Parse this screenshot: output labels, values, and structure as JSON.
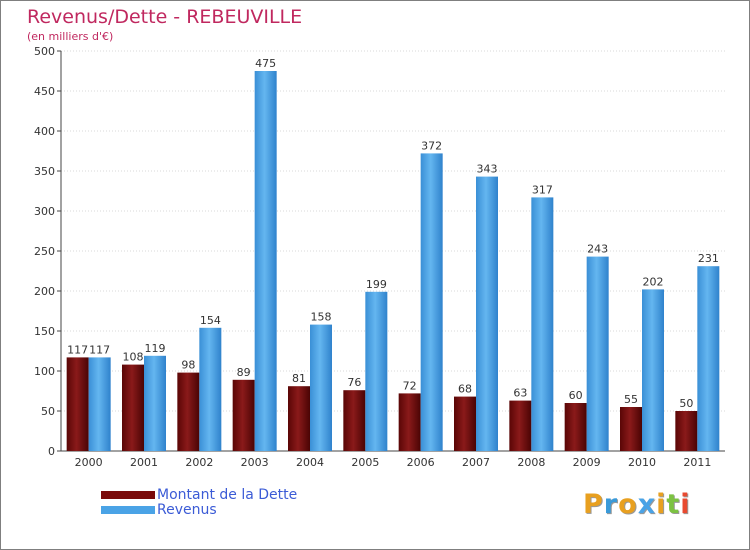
{
  "chart_data": {
    "type": "bar",
    "title": "Revenus/Dette - REBEUVILLE",
    "subtitle": "(en milliers d'€)",
    "categories": [
      "2000",
      "2001",
      "2002",
      "2003",
      "2004",
      "2005",
      "2006",
      "2007",
      "2008",
      "2009",
      "2010",
      "2011"
    ],
    "series": [
      {
        "name": "Montant de la Dette",
        "color": "#7a0a0a",
        "values": [
          117,
          108,
          98,
          89,
          81,
          76,
          72,
          68,
          63,
          60,
          55,
          50
        ]
      },
      {
        "name": "Revenus",
        "color": "#4aa3e6",
        "values": [
          117,
          119,
          154,
          475,
          158,
          199,
          372,
          343,
          317,
          243,
          202,
          231
        ]
      }
    ],
    "yticks": [
      0,
      50,
      100,
      150,
      200,
      250,
      300,
      350,
      400,
      450,
      500
    ],
    "ylim": [
      0,
      500
    ],
    "grid": true,
    "legend_position": "bottom-left"
  },
  "logo": {
    "letters": [
      "P",
      "r",
      "o",
      "x",
      "i",
      "t",
      "i"
    ],
    "colors": [
      "#e8a020",
      "#3a9ad9",
      "#e8a020",
      "#4aa3e6",
      "#e8a020",
      "#7cc242",
      "#e84a30"
    ],
    "icon": "proxiti-logo"
  }
}
